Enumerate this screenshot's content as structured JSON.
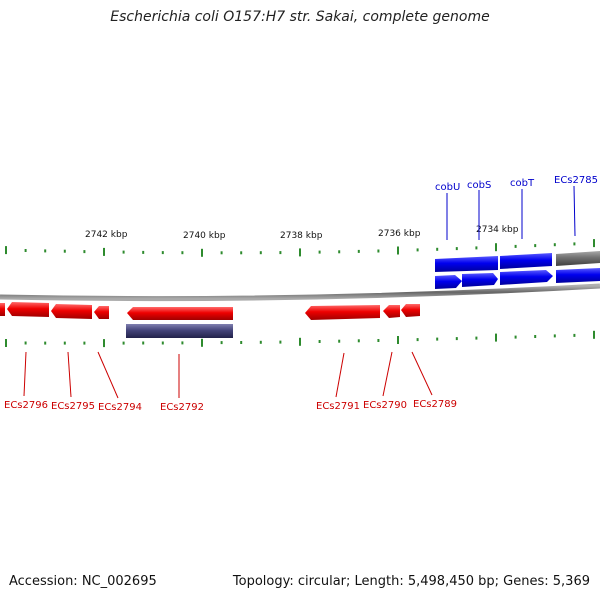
{
  "title": "Escherichia coli O157:H7 str. Sakai, complete genome",
  "accession": "Accession: NC_002695",
  "summary": "Topology: circular; Length: 5,498,450 bp; Genes: 5,369",
  "scale_labels": [
    "2742 kbp",
    "2740 kbp",
    "2738 kbp",
    "2736 kbp",
    "2734 kbp"
  ],
  "gene_labels_top": [
    "cobU",
    "cobS",
    "cobT",
    "ECs2785"
  ],
  "gene_labels_bottom": [
    "ECs2796",
    "ECs2795",
    "ECs2794",
    "ECs2792",
    "ECs2791",
    "ECs2790",
    "ECs2789"
  ],
  "colors": {
    "forward_gene": "#0000ee",
    "reverse_gene": "#ee0000",
    "other_feature": "#707070",
    "rna_feature": "#44447a",
    "tick": "#2e8b2e",
    "backbone": "#666666",
    "label_top": "#0000cc",
    "label_bottom": "#cc0000"
  }
}
